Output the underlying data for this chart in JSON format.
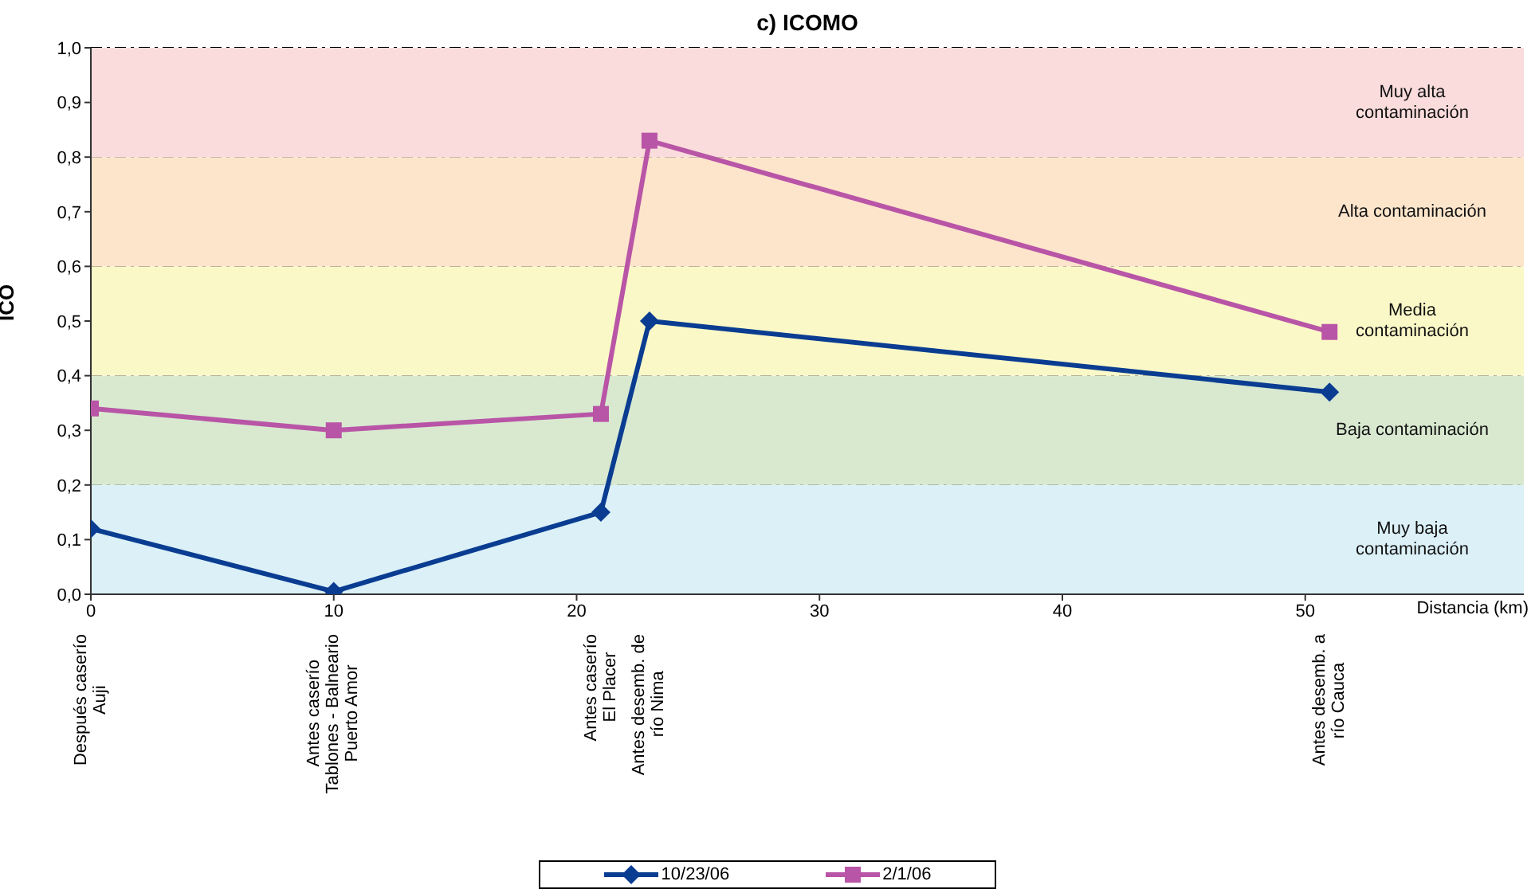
{
  "chart_data": {
    "type": "line",
    "title": "c) ICOMO",
    "xlabel": "Distancia (km)",
    "ylabel": "ICO",
    "x": [
      0,
      10,
      21,
      23,
      51
    ],
    "series": [
      {
        "name": "10/23/06",
        "color": "#0a3d91",
        "marker": "diamond",
        "values": [
          0.12,
          0.005,
          0.15,
          0.5,
          0.37
        ]
      },
      {
        "name": "2/1/06",
        "color": "#b955a6",
        "marker": "square",
        "values": [
          0.34,
          0.3,
          0.33,
          0.83,
          0.48
        ]
      }
    ],
    "xlim": [
      0,
      59
    ],
    "xticks": [
      0,
      10,
      20,
      30,
      40,
      50
    ],
    "ylim": [
      0,
      1
    ],
    "yticks": [
      {
        "value": 0,
        "label": "0,0"
      },
      {
        "value": 0.1,
        "label": "0,1"
      },
      {
        "value": 0.2,
        "label": "0,2"
      },
      {
        "value": 0.3,
        "label": "0,3"
      },
      {
        "value": 0.4,
        "label": "0,4"
      },
      {
        "value": 0.5,
        "label": "0,5"
      },
      {
        "value": 0.6,
        "label": "0,6"
      },
      {
        "value": 0.7,
        "label": "0,7"
      },
      {
        "value": 0.8,
        "label": "0,8"
      },
      {
        "value": 0.9,
        "label": "0,9"
      },
      {
        "value": 1,
        "label": "1,0"
      }
    ],
    "grid": "y",
    "legend": "bottom",
    "line_style": "solid",
    "bands": [
      {
        "axis": "y",
        "from": 0,
        "to": 0.2,
        "label": "Muy baja\ncontaminación",
        "color": "#dbf0f7"
      },
      {
        "axis": "y",
        "from": 0.2,
        "to": 0.4,
        "label": "Baja contaminación",
        "color": "#d8e9d0"
      },
      {
        "axis": "y",
        "from": 0.4,
        "to": 0.6,
        "label": "Media\ncontaminación",
        "color": "#fbf8c8"
      },
      {
        "axis": "y",
        "from": 0.6,
        "to": 0.8,
        "label": "Alta contaminación",
        "color": "#fde5cc"
      },
      {
        "axis": "y",
        "from": 0.8,
        "to": 1,
        "label": "Muy alta\ncontaminación",
        "color": "#f9dcdb"
      }
    ],
    "annotations": [
      "Después caserío\nAuji",
      "Antes caserío\nTablones - Balneario\nPuerto Amor",
      "Antes caserío\nEl Placer",
      "Antes desemb. de\nrío Nima",
      "Antes desemb. a\nrío Cauca"
    ]
  }
}
